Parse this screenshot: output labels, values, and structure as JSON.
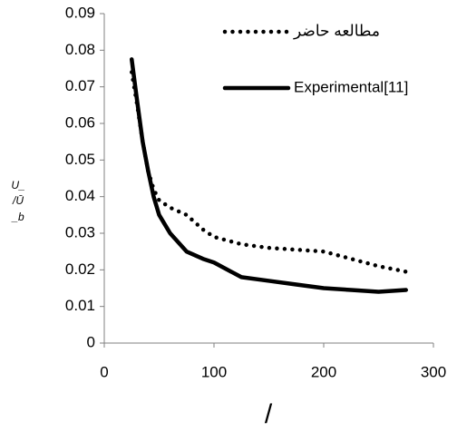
{
  "chart_data": {
    "type": "line",
    "ylabel": [
      "U_",
      "/Ū",
      "_b"
    ],
    "xlabel": "/",
    "x": [
      25,
      30,
      35,
      40,
      45,
      50,
      60,
      75,
      90,
      100,
      125,
      150,
      175,
      200,
      225,
      250,
      275
    ],
    "series": [
      {
        "name": "مطالعه حاضر",
        "color": "#000000",
        "style": "dotted",
        "values": [
          0.074,
          0.065,
          0.055,
          0.047,
          0.042,
          0.039,
          0.037,
          0.035,
          0.031,
          0.029,
          0.027,
          0.026,
          0.0255,
          0.025,
          0.023,
          0.021,
          0.0195
        ]
      },
      {
        "name": "Experimental[11]",
        "color": "#000000",
        "style": "solid",
        "values": [
          0.0775,
          0.066,
          0.055,
          0.047,
          0.04,
          0.035,
          0.03,
          0.025,
          0.023,
          0.022,
          0.018,
          0.017,
          0.016,
          0.015,
          0.0145,
          0.014,
          0.0145
        ]
      }
    ],
    "xlim": [
      0,
      300
    ],
    "xticks": [
      0,
      100,
      200,
      300
    ],
    "ylim": [
      0,
      0.09
    ],
    "yticks": [
      0,
      0.01,
      0.02,
      0.03,
      0.04,
      0.05,
      0.06,
      0.07,
      0.08,
      0.09
    ],
    "legend": "top-right"
  }
}
